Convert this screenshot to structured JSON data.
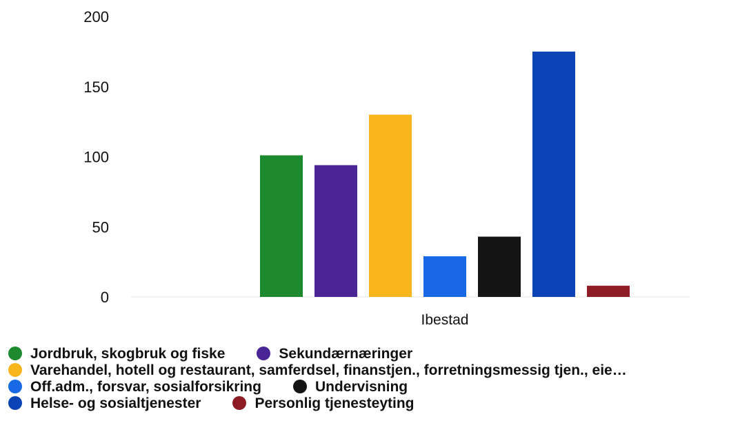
{
  "chart_data": {
    "type": "bar",
    "categories": [
      "Ibestad"
    ],
    "series": [
      {
        "name": "Jordbruk, skogbruk og fiske",
        "values": [
          101
        ],
        "color": "#1e8a2e"
      },
      {
        "name": "Sekundærnæringer",
        "values": [
          94
        ],
        "color": "#4a2596"
      },
      {
        "name": "Varehandel, hotell og restaurant, samferdsel, finanstjen., forretningsmessig tjen., eie…",
        "values": [
          130
        ],
        "color": "#f9b51c"
      },
      {
        "name": "Off.adm., forsvar, sosialforsikring",
        "values": [
          29
        ],
        "color": "#1769e6"
      },
      {
        "name": "Undervisning",
        "values": [
          43
        ],
        "color": "#141414"
      },
      {
        "name": "Helse- og sosialtjenester",
        "values": [
          175
        ],
        "color": "#0a44b4"
      },
      {
        "name": "Personlig tjenesteyting",
        "values": [
          8
        ],
        "color": "#8e1c24"
      }
    ],
    "yticks": [
      0,
      50,
      100,
      150,
      200
    ],
    "ylim": [
      0,
      200
    ],
    "xlabel": "",
    "ylabel": "",
    "grid": false,
    "legend_position": "bottom"
  }
}
